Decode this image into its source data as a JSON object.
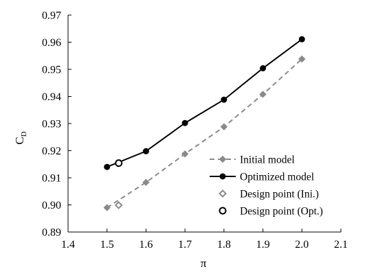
{
  "chart_data": {
    "type": "line",
    "xlabel": "π",
    "ylabel_main": "C",
    "ylabel_sub": "D",
    "xlim": [
      1.4,
      2.1
    ],
    "ylim": [
      0.89,
      0.97
    ],
    "x_ticks": [
      "1.4",
      "1.5",
      "1.6",
      "1.7",
      "1.8",
      "1.9",
      "2.0",
      "2.1"
    ],
    "y_ticks": [
      "0.89",
      "0.90",
      "0.91",
      "0.92",
      "0.93",
      "0.94",
      "0.95",
      "0.96",
      "0.97"
    ],
    "grid": false,
    "legend_position": "bottom-right",
    "series": [
      {
        "name": "Initial model",
        "color": "#8a8a8a",
        "line_style": "dashed",
        "marker": "diamond-filled",
        "x": [
          1.5,
          1.6,
          1.7,
          1.8,
          1.9,
          2.0
        ],
        "y": [
          0.899,
          0.9083,
          0.9188,
          0.9288,
          0.9408,
          0.9538
        ]
      },
      {
        "name": "Optimized model",
        "color": "#000000",
        "line_style": "solid",
        "marker": "circle-filled",
        "x": [
          1.5,
          1.6,
          1.7,
          1.8,
          1.9,
          2.0
        ],
        "y": [
          0.914,
          0.9198,
          0.9302,
          0.9388,
          0.9504,
          0.9611
        ]
      },
      {
        "name": "Design point (Ini.)",
        "color": "#8a8a8a",
        "line_style": "none",
        "marker": "diamond-open",
        "x": [
          1.53
        ],
        "y": [
          0.8999
        ]
      },
      {
        "name": "Design point (Opt.)",
        "color": "#000000",
        "line_style": "none",
        "marker": "circle-open",
        "x": [
          1.53
        ],
        "y": [
          0.9154
        ]
      }
    ]
  }
}
